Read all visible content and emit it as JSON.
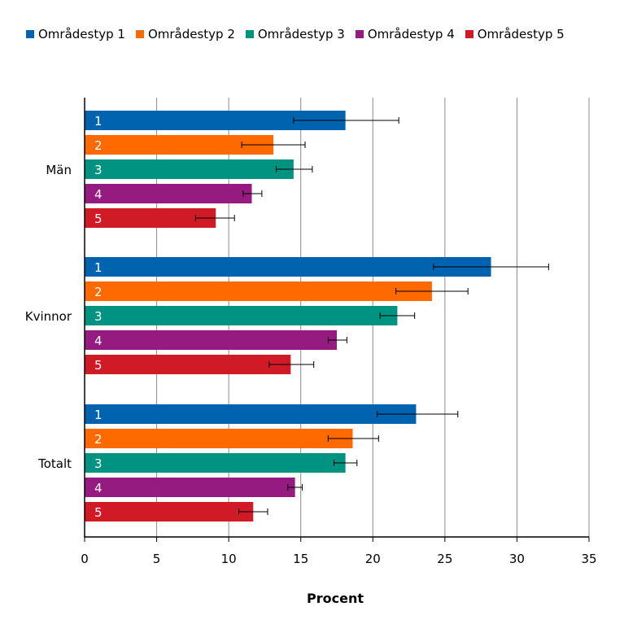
{
  "chart_data": {
    "type": "bar",
    "orientation": "horizontal",
    "categories": [
      "Män",
      "Kvinnor",
      "Totalt"
    ],
    "series": [
      {
        "name": "Områdestyp 1",
        "label": "1",
        "color": "#0063AF",
        "values": [
          18.1,
          28.2,
          23.0
        ],
        "error_low": [
          14.5,
          24.2,
          20.3
        ],
        "error_high": [
          21.8,
          32.2,
          25.9
        ]
      },
      {
        "name": "Områdestyp 2",
        "label": "2",
        "color": "#FF6A00",
        "values": [
          13.1,
          24.1,
          18.6
        ],
        "error_low": [
          10.9,
          21.6,
          16.9
        ],
        "error_high": [
          15.3,
          26.6,
          20.4
        ]
      },
      {
        "name": "Områdestyp 3",
        "label": "3",
        "color": "#009382",
        "values": [
          14.5,
          21.7,
          18.1
        ],
        "error_low": [
          13.3,
          20.5,
          17.3
        ],
        "error_high": [
          15.8,
          22.9,
          18.9
        ]
      },
      {
        "name": "Områdestyp 4",
        "label": "4",
        "color": "#951B81",
        "values": [
          11.6,
          17.5,
          14.6
        ],
        "error_low": [
          11.0,
          16.9,
          14.1
        ],
        "error_high": [
          12.3,
          18.2,
          15.1
        ]
      },
      {
        "name": "Områdestyp 5",
        "label": "5",
        "color": "#D01A26",
        "values": [
          9.1,
          14.3,
          11.7
        ],
        "error_low": [
          7.7,
          12.8,
          10.7
        ],
        "error_high": [
          10.4,
          15.9,
          12.7
        ]
      }
    ],
    "xlabel": "Procent",
    "ylabel": "",
    "xlim": [
      0,
      35
    ],
    "xticks": [
      "0",
      "5",
      "10",
      "15",
      "20",
      "25",
      "30",
      "35"
    ],
    "grid": "vertical",
    "legend_position": "top"
  }
}
